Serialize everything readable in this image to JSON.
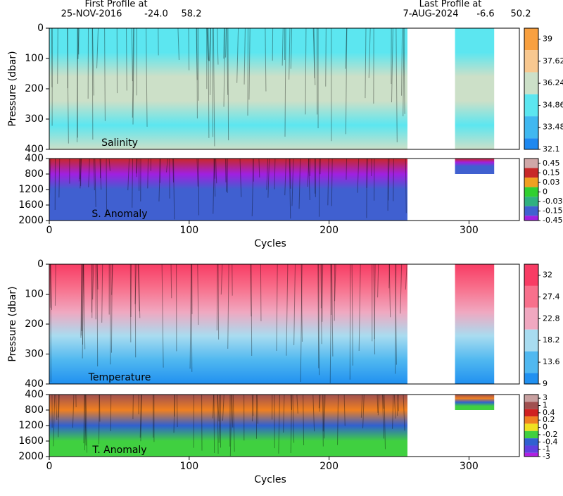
{
  "header": {
    "first_label": "First Profile at",
    "first_date": "25-NOV-2016",
    "first_lat": "-24.0",
    "first_lon": "58.2",
    "last_label": "Last Profile at",
    "last_date": "7-AUG-2024",
    "last_lat": "-6.6",
    "last_lon": "50.2"
  },
  "chart_data": [
    {
      "type": "contour",
      "label": "Salinity",
      "ylabel": "Pressure (dbar)",
      "xlim": [
        0,
        336
      ],
      "ylim": [
        0,
        400
      ],
      "y_inverted": true,
      "yticks": [
        0,
        100,
        200,
        300,
        400
      ],
      "colorbar": {
        "ticks": [
          39,
          37.62,
          36.24,
          34.86,
          33.48,
          32.1
        ],
        "colors": [
          "#f8a040",
          "#f8c890",
          "#cce0c8",
          "#5ce6f0",
          "#40b8f0",
          "#1e88f0"
        ]
      }
    },
    {
      "type": "contour",
      "label": "S. Anomaly",
      "xlabel": "Cycles",
      "xlim": [
        0,
        336
      ],
      "ylim": [
        400,
        2000
      ],
      "y_inverted": true,
      "xticks": [
        0,
        100,
        200,
        300
      ],
      "yticks": [
        400,
        800,
        1200,
        1600,
        2000
      ],
      "colorbar": {
        "ticks": [
          0.45,
          0.15,
          0.03,
          0,
          -0.03,
          -0.15,
          -0.45
        ],
        "colors": [
          "#d0a8a8",
          "#c82828",
          "#f0a020",
          "#30d030",
          "#30b080",
          "#4060d0",
          "#a020e0"
        ]
      }
    },
    {
      "type": "contour",
      "label": "Temperature",
      "ylabel": "Pressure (dbar)",
      "xlim": [
        0,
        336
      ],
      "ylim": [
        0,
        400
      ],
      "y_inverted": true,
      "yticks": [
        0,
        100,
        200,
        300,
        400
      ],
      "colorbar": {
        "ticks": [
          32,
          27.4,
          22.8,
          18.2,
          13.6,
          9
        ],
        "colors": [
          "#f83c64",
          "#f8708c",
          "#f0a8c0",
          "#a8dcf0",
          "#50b8f0",
          "#2090f0"
        ]
      }
    },
    {
      "type": "contour",
      "label": "T. Anomaly",
      "xlabel": "Cycles",
      "xlim": [
        0,
        336
      ],
      "ylim": [
        400,
        2000
      ],
      "y_inverted": true,
      "xticks": [
        0,
        100,
        200,
        300
      ],
      "yticks": [
        400,
        800,
        1200,
        1600,
        2000
      ],
      "colorbar": {
        "ticks": [
          3,
          1,
          0.4,
          0.2,
          0,
          -0.2,
          -0.4,
          -1,
          -3
        ],
        "colors": [
          "#c8a0a0",
          "#a05050",
          "#d02020",
          "#f08020",
          "#f0e020",
          "#40d040",
          "#3060d0",
          "#6040e0",
          "#b020e0"
        ]
      }
    }
  ]
}
